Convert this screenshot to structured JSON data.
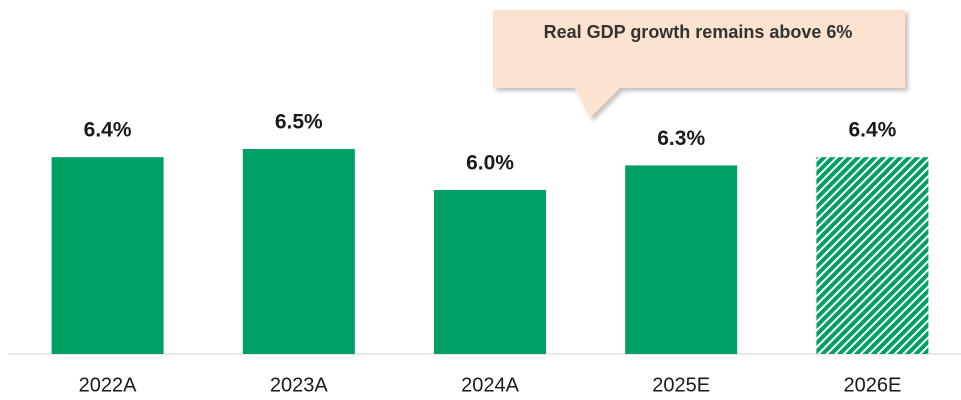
{
  "chart_data": {
    "type": "bar",
    "categories": [
      "2022A",
      "2023A",
      "2024A",
      "2025E",
      "2026E"
    ],
    "values": [
      6.4,
      6.5,
      6.0,
      6.3,
      6.4
    ],
    "value_labels": [
      "6.4%",
      "6.5%",
      "6.0%",
      "6.3%",
      "6.4%"
    ],
    "hatched": [
      false,
      false,
      false,
      false,
      true
    ],
    "color": "#00a064",
    "ylim": [
      4,
      7
    ],
    "annotation": "Real GDP growth remains above 6%"
  }
}
